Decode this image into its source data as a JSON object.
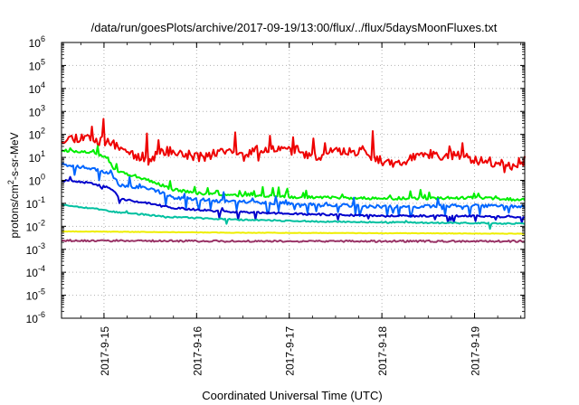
{
  "chart_data": {
    "type": "line",
    "title": "/data/run/goesPlots/archive/2017-09-19/13:00/flux/../flux/5daysMoonFluxes.txt",
    "xlabel": "Coordinated Universal Time (UTC)",
    "ylabel": "protons/cm²-s-sr-MeV",
    "ylabel_parts": {
      "pre": "protons/cm",
      "sup": "2",
      "post": "-s-sr-MeV"
    },
    "y_scale": "log",
    "ylim_exp": [
      -6,
      6
    ],
    "y_ticks": [
      {
        "base": "10",
        "exp": "-6"
      },
      {
        "base": "10",
        "exp": "-5"
      },
      {
        "base": "10",
        "exp": "-4"
      },
      {
        "base": "10",
        "exp": "-3"
      },
      {
        "base": "10",
        "exp": "-2"
      },
      {
        "base": "10",
        "exp": "-1"
      },
      {
        "base": "10",
        "exp": "0"
      },
      {
        "base": "10",
        "exp": "1"
      },
      {
        "base": "10",
        "exp": "2"
      },
      {
        "base": "10",
        "exp": "3"
      },
      {
        "base": "10",
        "exp": "4"
      },
      {
        "base": "10",
        "exp": "5"
      },
      {
        "base": "10",
        "exp": "6"
      }
    ],
    "x_range": [
      "2017-09-14T13:00",
      "2017-09-19T13:00"
    ],
    "x_ticks": [
      {
        "label": "2017-9-15",
        "at": "2017-09-15T00:00"
      },
      {
        "label": "2017-9-16",
        "at": "2017-09-16T00:00"
      },
      {
        "label": "2017-9-17",
        "at": "2017-09-17T00:00"
      },
      {
        "label": "2017-9-18",
        "at": "2017-09-18T00:00"
      },
      {
        "label": "2017-9-19",
        "at": "2017-09-19T00:00"
      }
    ],
    "grid": true,
    "series": [
      {
        "color": "#ee0000",
        "seed": 11,
        "noise": 0.22,
        "spike_prob": 0.07,
        "spike_size": 1.3,
        "dip_prob": 0.02,
        "dip_size": 0.6,
        "points": [
          [
            "2017-09-14T13:00",
            1.8
          ],
          [
            "2017-09-14T19:00",
            1.9
          ],
          [
            "2017-09-15T04:00",
            1.5
          ],
          [
            "2017-09-15T08:00",
            1.1
          ],
          [
            "2017-09-15T12:00",
            0.9
          ],
          [
            "2017-09-15T16:00",
            1.3
          ],
          [
            "2017-09-15T20:00",
            1.15
          ],
          [
            "2017-09-16T02:00",
            1.0
          ],
          [
            "2017-09-16T06:00",
            1.3
          ],
          [
            "2017-09-16T12:00",
            1.05
          ],
          [
            "2017-09-16T18:00",
            1.4
          ],
          [
            "2017-09-17T02:00",
            1.3
          ],
          [
            "2017-09-17T06:00",
            0.95
          ],
          [
            "2017-09-17T12:00",
            1.25
          ],
          [
            "2017-09-17T19:00",
            1.3
          ],
          [
            "2017-09-18T00:00",
            0.8
          ],
          [
            "2017-09-18T05:00",
            0.7
          ],
          [
            "2017-09-18T10:00",
            1.2
          ],
          [
            "2017-09-18T16:00",
            1.1
          ],
          [
            "2017-09-18T22:00",
            1.0
          ],
          [
            "2017-09-19T04:00",
            0.8
          ],
          [
            "2017-09-19T09:00",
            0.6
          ],
          [
            "2017-09-19T13:00",
            0.85
          ]
        ]
      },
      {
        "color": "#00ee00",
        "seed": 23,
        "noise": 0.06,
        "spike_prob": 0.12,
        "spike_size": 0.35,
        "dip_prob": 0.0,
        "dip_size": 0.0,
        "points": [
          [
            "2017-09-14T13:00",
            1.3
          ],
          [
            "2017-09-14T20:00",
            1.25
          ],
          [
            "2017-09-15T01:00",
            0.95
          ],
          [
            "2017-09-15T03:00",
            0.4
          ],
          [
            "2017-09-15T09:00",
            0.15
          ],
          [
            "2017-09-15T18:00",
            -0.4
          ],
          [
            "2017-09-16T02:00",
            -0.6
          ],
          [
            "2017-09-16T12:00",
            -0.65
          ],
          [
            "2017-09-17T00:00",
            -0.72
          ],
          [
            "2017-09-18T00:00",
            -0.78
          ],
          [
            "2017-09-19T00:00",
            -0.76
          ],
          [
            "2017-09-19T13:00",
            -0.85
          ]
        ]
      },
      {
        "color": "#0066ff",
        "seed": 37,
        "noise": 0.07,
        "spike_prob": 0.05,
        "spike_size": 0.4,
        "dip_prob": 0.14,
        "dip_size": 0.5,
        "points": [
          [
            "2017-09-14T13:00",
            0.7
          ],
          [
            "2017-09-14T20:00",
            0.55
          ],
          [
            "2017-09-15T02:00",
            0.25
          ],
          [
            "2017-09-15T04:00",
            -0.2
          ],
          [
            "2017-09-15T12:00",
            -0.35
          ],
          [
            "2017-09-15T18:00",
            -0.75
          ],
          [
            "2017-09-16T06:00",
            -0.9
          ],
          [
            "2017-09-17T00:00",
            -1.0
          ],
          [
            "2017-09-18T00:00",
            -1.15
          ],
          [
            "2017-09-19T00:00",
            -1.1
          ],
          [
            "2017-09-19T13:00",
            -1.15
          ]
        ]
      },
      {
        "color": "#0000cc",
        "seed": 41,
        "noise": 0.04,
        "spike_prob": 0.02,
        "spike_size": 0.2,
        "dip_prob": 0.05,
        "dip_size": 0.35,
        "points": [
          [
            "2017-09-14T13:00",
            0.0
          ],
          [
            "2017-09-14T20:00",
            -0.1
          ],
          [
            "2017-09-15T02:00",
            -0.35
          ],
          [
            "2017-09-15T04:00",
            -0.8
          ],
          [
            "2017-09-15T12:00",
            -1.0
          ],
          [
            "2017-09-15T18:00",
            -1.2
          ],
          [
            "2017-09-16T06:00",
            -1.35
          ],
          [
            "2017-09-17T00:00",
            -1.45
          ],
          [
            "2017-09-18T00:00",
            -1.55
          ],
          [
            "2017-09-19T00:00",
            -1.55
          ],
          [
            "2017-09-19T13:00",
            -1.6
          ]
        ]
      },
      {
        "color": "#00c0a0",
        "seed": 53,
        "noise": 0.03,
        "spike_prob": 0.02,
        "spike_size": 0.15,
        "dip_prob": 0.015,
        "dip_size": 0.3,
        "points": [
          [
            "2017-09-14T13:00",
            -1.05
          ],
          [
            "2017-09-14T20:00",
            -1.2
          ],
          [
            "2017-09-15T04:00",
            -1.4
          ],
          [
            "2017-09-15T18:00",
            -1.6
          ],
          [
            "2017-09-16T12:00",
            -1.72
          ],
          [
            "2017-09-17T12:00",
            -1.8
          ],
          [
            "2017-09-18T12:00",
            -1.85
          ],
          [
            "2017-09-19T13:00",
            -1.88
          ]
        ]
      },
      {
        "color": "#eeee00",
        "seed": 67,
        "noise": 0.01,
        "spike_prob": 0.0,
        "spike_size": 0.0,
        "dip_prob": 0.0,
        "dip_size": 0.0,
        "points": [
          [
            "2017-09-14T13:00",
            -2.22
          ],
          [
            "2017-09-16T12:00",
            -2.28
          ],
          [
            "2017-09-19T13:00",
            -2.32
          ]
        ]
      },
      {
        "color": "#993366",
        "seed": 79,
        "noise": 0.04,
        "spike_prob": 0.0,
        "spike_size": 0.0,
        "dip_prob": 0.0,
        "dip_size": 0.0,
        "points": [
          [
            "2017-09-14T13:00",
            -2.62
          ],
          [
            "2017-09-16T12:00",
            -2.65
          ],
          [
            "2017-09-19T13:00",
            -2.65
          ]
        ]
      }
    ]
  }
}
